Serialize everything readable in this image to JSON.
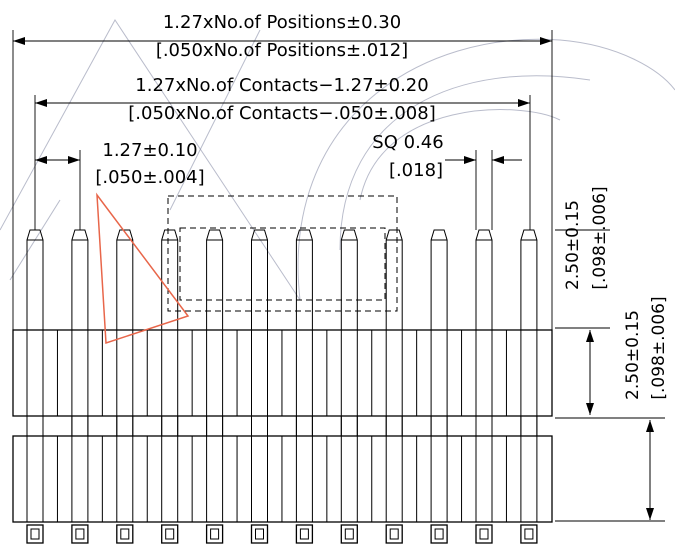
{
  "dimensions": {
    "overall_mm": "1.27xNo.of  Positions±0.30",
    "overall_in": "[.050xNo.of  Positions±.012]",
    "contacts_mm": "1.27xNo.of  Contacts−1.27±0.20",
    "contacts_in": "[.050xNo.of  Contacts−.050±.008]",
    "pitch_mm": "1.27±0.10",
    "pitch_in": "[.050±.004]",
    "sq_mm": "SQ  0.46",
    "sq_in": "[.018]",
    "pin_height_mm": "2.50±0.15",
    "pin_height_in": "[.098±.006]",
    "body_height_mm": "2.50±0.15",
    "body_height_in": "[.098±.006]"
  },
  "colors": {
    "line": "#000000",
    "highlight": "#e8664a",
    "watermark": "#8a8fa8"
  },
  "pin_count": 12
}
